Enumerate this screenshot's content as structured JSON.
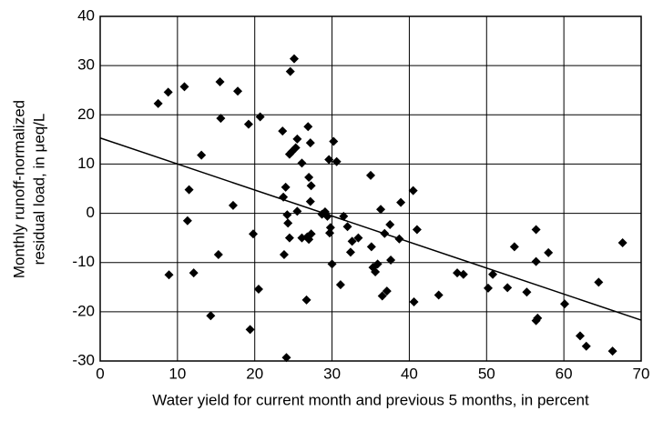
{
  "chart_data": {
    "type": "scatter",
    "x_label": "Water yield for current month and previous 5 months, in percent",
    "y_label": [
      "Monthly runoff-normalized",
      "residual load, in μeq/L"
    ],
    "xlim": [
      0,
      70
    ],
    "xticks": [
      0,
      10,
      20,
      30,
      40,
      50,
      60,
      70
    ],
    "ylim": [
      -30,
      40
    ],
    "yticks": [
      -30,
      -20,
      -10,
      0,
      10,
      20,
      30,
      40
    ],
    "grid": true,
    "marker": "diamond",
    "color": "#000000",
    "series": [
      {
        "x": [
          7.5,
          8.8,
          10.9,
          15.5,
          17.8,
          15.6,
          19.2,
          20.7,
          13.1,
          11.5,
          11.3,
          8.9,
          12.1,
          14.3,
          15.3,
          17.2,
          19.8,
          20.5,
          19.4,
          23.7,
          24,
          24.3,
          24.2,
          24.5,
          23.8,
          24.5,
          24.6,
          25.1,
          25.3,
          24.8,
          25.5,
          23.6,
          26.1,
          25.5,
          26.1,
          26.8,
          27,
          27.3,
          26.7,
          26.9,
          27.2,
          27,
          27.3,
          27.2,
          24.1,
          28.7,
          29.1,
          29.4,
          29.7,
          29.6,
          30.2,
          30.6,
          29.8,
          30,
          31.1,
          31.5,
          32,
          32.4,
          32.6,
          33.4,
          35,
          35.1,
          35.3,
          35.6,
          35.9,
          36.3,
          36.5,
          36.8,
          37.1,
          37.5,
          37.6,
          38.9,
          38.7,
          40.5,
          40.6,
          41,
          43.8,
          46.2,
          47,
          50.2,
          50.8,
          52.7,
          53.6,
          55.2,
          56.4,
          56.4,
          56.4,
          56.6,
          58,
          60.1,
          62.1,
          62.9,
          64.5,
          66.3,
          67.6
        ],
        "values": [
          22.3,
          24.6,
          25.7,
          26.7,
          24.8,
          19.3,
          18.1,
          19.6,
          11.8,
          4.8,
          -1.5,
          -12.5,
          -12.1,
          -20.8,
          -8.4,
          1.6,
          -4.2,
          -15.4,
          -23.6,
          3.3,
          5.3,
          -2,
          -0.3,
          -5,
          -8.4,
          12,
          28.8,
          31.4,
          13.3,
          12.5,
          15.1,
          16.7,
          10.2,
          0.4,
          -5,
          -4.8,
          -5.3,
          -4.2,
          -17.6,
          17.6,
          14.3,
          7.3,
          5.6,
          2.4,
          -29.3,
          -0.2,
          0.3,
          -0.6,
          -4,
          10.9,
          14.6,
          10.5,
          -2.9,
          -10.3,
          -14.5,
          -0.6,
          -2.7,
          -7.9,
          -5.7,
          -5,
          7.7,
          -6.8,
          -11,
          -11.9,
          -10.3,
          0.8,
          -16.8,
          -4.1,
          -15.8,
          -2.3,
          -9.5,
          2.2,
          -5.2,
          4.6,
          -18,
          -3.3,
          -16.6,
          -12.1,
          -12.4,
          -15.2,
          -12.4,
          -15.1,
          -6.8,
          -16,
          -3.3,
          -9.8,
          -21.8,
          -21.3,
          -8,
          -18.4,
          -24.9,
          -27,
          -14,
          -28,
          -6
        ]
      }
    ],
    "trend_line": {
      "x": [
        0,
        70
      ],
      "y": [
        15.3,
        -21.7
      ],
      "color": "#000000"
    }
  }
}
